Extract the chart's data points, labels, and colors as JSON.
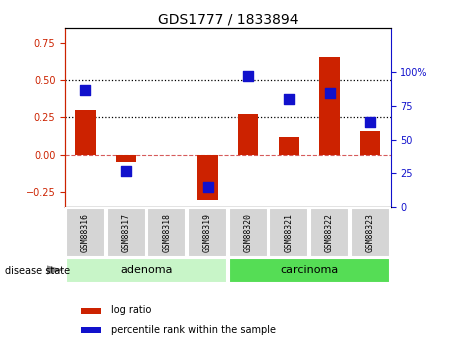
{
  "title": "GDS1777 / 1833894",
  "samples": [
    "GSM88316",
    "GSM88317",
    "GSM88318",
    "GSM88319",
    "GSM88320",
    "GSM88321",
    "GSM88322",
    "GSM88323"
  ],
  "log_ratio": [
    0.3,
    -0.05,
    0.0,
    -0.3,
    0.27,
    0.12,
    0.65,
    0.16
  ],
  "percentile_rank": [
    87,
    27,
    null,
    15,
    97,
    80,
    85,
    63
  ],
  "groups": [
    {
      "label": "adenoma",
      "samples": [
        0,
        1,
        2,
        3
      ],
      "color": "#c8f5c8"
    },
    {
      "label": "carcinoma",
      "samples": [
        4,
        5,
        6,
        7
      ],
      "color": "#55dd55"
    }
  ],
  "ylim_left": [
    -0.35,
    0.85
  ],
  "ylim_right": [
    0,
    133.33
  ],
  "yticks_left": [
    -0.25,
    0.0,
    0.25,
    0.5,
    0.75
  ],
  "yticks_right": [
    0,
    25,
    50,
    75,
    100
  ],
  "ytick_labels_right": [
    "0",
    "25",
    "50",
    "75",
    "100%"
  ],
  "hlines": [
    0.25,
    0.5
  ],
  "bar_color": "#cc2200",
  "dot_color": "#1111cc",
  "bar_width": 0.5,
  "dot_size": 55,
  "legend_items": [
    "log ratio",
    "percentile rank within the sample"
  ],
  "disease_state_label": "disease state",
  "title_fontsize": 10,
  "tick_fontsize": 7,
  "label_fontsize": 7
}
